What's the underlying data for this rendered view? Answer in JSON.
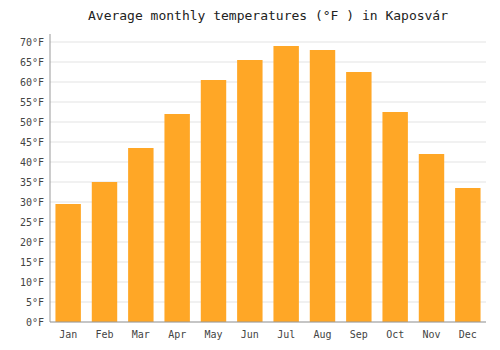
{
  "chart_data": {
    "type": "bar",
    "title": "Average monthly temperatures (°F ) in Kaposvár",
    "categories": [
      "Jan",
      "Feb",
      "Mar",
      "Apr",
      "May",
      "Jun",
      "Jul",
      "Aug",
      "Sep",
      "Oct",
      "Nov",
      "Dec"
    ],
    "values": [
      29.5,
      35.0,
      43.5,
      52.0,
      60.5,
      65.5,
      69.0,
      68.0,
      62.5,
      52.5,
      42.0,
      33.5
    ],
    "color": "#FFA726",
    "ylim": [
      0,
      72
    ],
    "yticks": [
      {
        "value": 0,
        "label": "0°F"
      },
      {
        "value": 5,
        "label": "5°F"
      },
      {
        "value": 10,
        "label": "10°F"
      },
      {
        "value": 15,
        "label": "15°F"
      },
      {
        "value": 20,
        "label": "20°F"
      },
      {
        "value": 25,
        "label": "25°F"
      },
      {
        "value": 30,
        "label": "30°F"
      },
      {
        "value": 35,
        "label": "35°F"
      },
      {
        "value": 40,
        "label": "40°F"
      },
      {
        "value": 45,
        "label": "45°F"
      },
      {
        "value": 50,
        "label": "50°F"
      },
      {
        "value": 55,
        "label": "55°F"
      },
      {
        "value": 60,
        "label": "60°F"
      },
      {
        "value": 65,
        "label": "65°F"
      },
      {
        "value": 70,
        "label": "70°F"
      }
    ],
    "grid": true
  }
}
